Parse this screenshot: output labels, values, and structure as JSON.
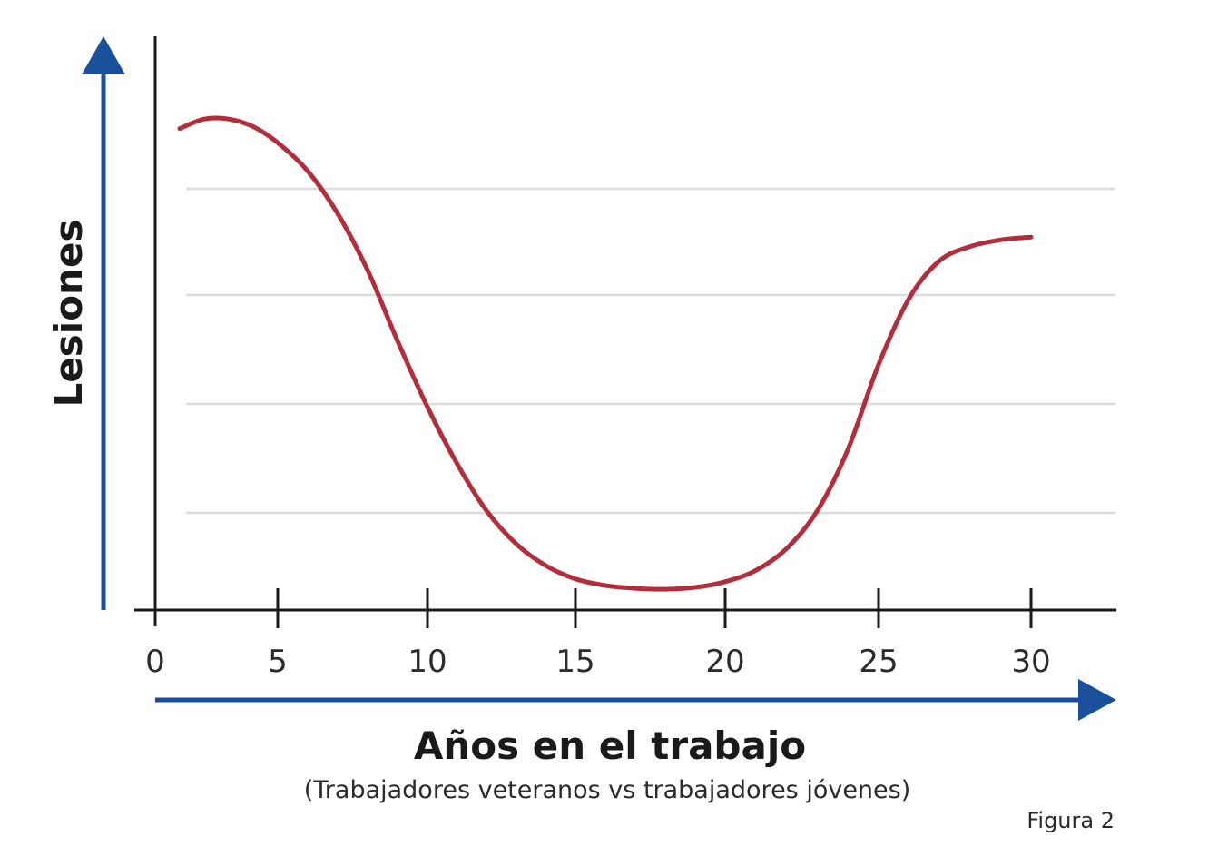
{
  "chart_data": {
    "type": "line",
    "xlabel": "Años en el trabajo",
    "subtitle": "(Trabajadores veteranos vs trabajadores jóvenes)",
    "ylabel": "Lesiones",
    "figure_label": "Figura 2",
    "x_ticks": [
      "0",
      "5",
      "10",
      "15",
      "20",
      "25",
      "30"
    ],
    "xlim": [
      0,
      33
    ],
    "ylim": [
      0,
      6
    ],
    "grid": "horizontal",
    "series": [
      {
        "color": "#b22e3c",
        "x": [
          1,
          2,
          3,
          4,
          5,
          6,
          7,
          8,
          9,
          10,
          11,
          12,
          13,
          14,
          15,
          16,
          17,
          18,
          19,
          20,
          21,
          22,
          23,
          24,
          25,
          26,
          27,
          28,
          29,
          30
        ],
        "y": [
          5.1,
          5.2,
          5.2,
          5.12,
          4.95,
          4.65,
          4.2,
          3.6,
          2.85,
          2.15,
          1.55,
          1.05,
          0.7,
          0.47,
          0.33,
          0.26,
          0.23,
          0.22,
          0.24,
          0.3,
          0.42,
          0.65,
          1.05,
          1.7,
          2.6,
          3.3,
          3.7,
          3.85,
          3.92,
          3.95
        ]
      }
    ]
  },
  "colors": {
    "accent_arrow": "#1a4f9c",
    "curve": "#b22e3c",
    "axis": "#1a1a1a",
    "grid": "#dcdcdc"
  }
}
